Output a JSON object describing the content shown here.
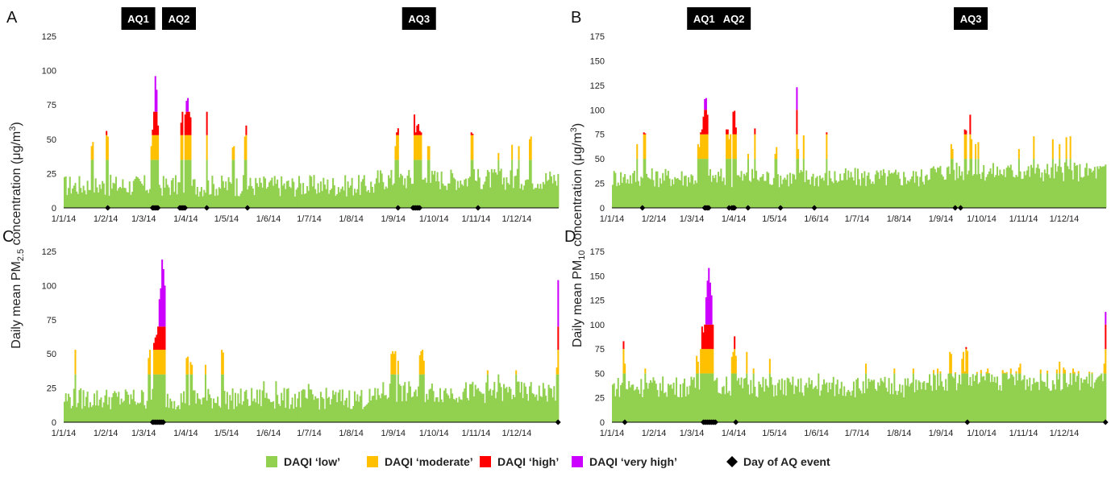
{
  "colors": {
    "low": "#92d050",
    "moderate": "#ffc000",
    "high": "#ff0000",
    "very_high": "#cc00ff",
    "event": "#000000"
  },
  "ylabels": {
    "left_prefix": "Daily mean PM",
    "left_sub": "2.5",
    "left_suffix": " concentration (μg/m",
    "left_sup": "3",
    "left_close": ")",
    "right_prefix": "Daily mean PM",
    "right_sub": "10",
    "right_suffix": " concentration (μg/m",
    "right_sup": "3",
    "right_close": ")"
  },
  "aq_labels": [
    "AQ1",
    "AQ2",
    "AQ3"
  ],
  "legend": {
    "low": "DAQI ‘low’",
    "moderate": "DAQI ‘moderate’",
    "high": "DAQI ‘high’",
    "very_high": "DAQI ‘very high’",
    "event": "Day of AQ event"
  },
  "chart_data": [
    {
      "panel": "A",
      "type": "bar",
      "pollutant": "PM2.5",
      "x_ticks": [
        "1/1/14",
        "1/2/14",
        "1/3/14",
        "1/4/14",
        "1/5/14",
        "1/6/14",
        "1/7/14",
        "1/8/14",
        "1/9/14",
        "1/10/14",
        "1/11/14",
        "1/12/14"
      ],
      "ylim": [
        0,
        125
      ],
      "yticks": [
        0,
        25,
        50,
        75,
        100,
        125
      ],
      "band_limits": [
        35,
        53,
        70
      ],
      "base": 13,
      "noise": 8,
      "peaks": [
        [
          31,
          56
        ],
        [
          32,
          52
        ],
        [
          64,
          45
        ],
        [
          65,
          57
        ],
        [
          66,
          70
        ],
        [
          67,
          96
        ],
        [
          68,
          86
        ],
        [
          69,
          60
        ],
        [
          86,
          62
        ],
        [
          87,
          70
        ],
        [
          89,
          68
        ],
        [
          90,
          78
        ],
        [
          91,
          80
        ],
        [
          92,
          70
        ],
        [
          93,
          66
        ],
        [
          105,
          70
        ],
        [
          124,
          44
        ],
        [
          125,
          45
        ],
        [
          134,
          60
        ],
        [
          133,
          52
        ],
        [
          244,
          45
        ],
        [
          245,
          55
        ],
        [
          246,
          58
        ],
        [
          258,
          68
        ],
        [
          259,
          55
        ],
        [
          260,
          60
        ],
        [
          261,
          61
        ],
        [
          262,
          56
        ],
        [
          263,
          55
        ],
        [
          268,
          45
        ],
        [
          269,
          45
        ],
        [
          300,
          55
        ],
        [
          301,
          54
        ],
        [
          320,
          40
        ],
        [
          330,
          46
        ],
        [
          335,
          45
        ],
        [
          343,
          50
        ],
        [
          344,
          52
        ],
        [
          20,
          45
        ],
        [
          21,
          48
        ]
      ],
      "events": [
        32,
        65,
        66,
        67,
        68,
        69,
        85,
        86,
        87,
        88,
        89,
        105,
        135,
        246,
        257,
        258,
        259,
        260,
        261,
        262,
        305
      ],
      "aq_label_days": [
        55,
        85,
        262
      ]
    },
    {
      "panel": "B",
      "type": "bar",
      "pollutant": "PM10",
      "x_ticks": [
        "1/1/14",
        "1/2/14",
        "1/3/14",
        "1/4/14",
        "1/5/14",
        "1/6/14",
        "1/7/14",
        "1/8/14",
        "1/9/14",
        "1/10/14",
        "1/11/14",
        "1/12/14"
      ],
      "ylim": [
        0,
        175
      ],
      "yticks": [
        0,
        25,
        50,
        75,
        100,
        125,
        150,
        175
      ],
      "band_limits": [
        50,
        75,
        100
      ],
      "base": 27,
      "noise": 10,
      "peaks": [
        [
          18,
          65
        ],
        [
          23,
          77
        ],
        [
          24,
          76
        ],
        [
          63,
          65
        ],
        [
          64,
          62
        ],
        [
          65,
          77
        ],
        [
          66,
          80
        ],
        [
          67,
          93
        ],
        [
          68,
          111
        ],
        [
          69,
          112
        ],
        [
          70,
          95
        ],
        [
          84,
          80
        ],
        [
          85,
          80
        ],
        [
          86,
          70
        ],
        [
          87,
          75
        ],
        [
          89,
          98
        ],
        [
          90,
          99
        ],
        [
          91,
          82
        ],
        [
          100,
          55
        ],
        [
          105,
          81
        ],
        [
          120,
          55
        ],
        [
          121,
          62
        ],
        [
          136,
          123
        ],
        [
          137,
          60
        ],
        [
          141,
          74
        ],
        [
          158,
          77
        ],
        [
          250,
          65
        ],
        [
          251,
          60
        ],
        [
          260,
          80
        ],
        [
          261,
          79
        ],
        [
          264,
          95
        ],
        [
          265,
          70
        ],
        [
          268,
          65
        ],
        [
          270,
          67
        ],
        [
          300,
          60
        ],
        [
          311,
          73
        ],
        [
          325,
          70
        ],
        [
          330,
          65
        ],
        [
          335,
          72
        ],
        [
          338,
          73
        ]
      ],
      "events": [
        22,
        68,
        69,
        70,
        71,
        86,
        88,
        89,
        90,
        100,
        124,
        149,
        253,
        257
      ],
      "aq_label_days": [
        68,
        90,
        265
      ]
    },
    {
      "panel": "C",
      "type": "bar",
      "pollutant": "PM2.5",
      "x_ticks": [
        "1/1/14",
        "1/2/14",
        "1/3/14",
        "1/4/14",
        "1/5/14",
        "1/6/14",
        "1/7/14",
        "1/8/14",
        "1/9/14",
        "1/10/14",
        "1/11/14",
        "1/12/14"
      ],
      "ylim": [
        0,
        125
      ],
      "yticks": [
        0,
        25,
        50,
        75,
        100,
        125
      ],
      "band_limits": [
        35,
        53,
        70
      ],
      "base": 14,
      "noise": 8,
      "peaks": [
        [
          8,
          53
        ],
        [
          62,
          47
        ],
        [
          63,
          53
        ],
        [
          66,
          58
        ],
        [
          67,
          62
        ],
        [
          68,
          64
        ],
        [
          69,
          70
        ],
        [
          70,
          90
        ],
        [
          71,
          98
        ],
        [
          72,
          119
        ],
        [
          73,
          112
        ],
        [
          74,
          100
        ],
        [
          90,
          47
        ],
        [
          91,
          48
        ],
        [
          93,
          44
        ],
        [
          94,
          42
        ],
        [
          104,
          42
        ],
        [
          116,
          53
        ],
        [
          117,
          51
        ],
        [
          147,
          30
        ],
        [
          156,
          30
        ],
        [
          180,
          28
        ],
        [
          241,
          50
        ],
        [
          242,
          52
        ],
        [
          243,
          50
        ],
        [
          244,
          52
        ],
        [
          246,
          45
        ],
        [
          262,
          49
        ],
        [
          263,
          52
        ],
        [
          264,
          53
        ],
        [
          265,
          45
        ],
        [
          312,
          38
        ],
        [
          320,
          35
        ],
        [
          333,
          38
        ],
        [
          364,
          104
        ],
        [
          363,
          40
        ]
      ],
      "events": [
        65,
        66,
        67,
        68,
        69,
        70,
        71,
        72,
        73,
        364
      ],
      "aq_label_days": []
    },
    {
      "panel": "D",
      "type": "bar",
      "pollutant": "PM10",
      "x_ticks": [
        "1/1/14",
        "1/2/14",
        "1/3/14",
        "1/4/14",
        "1/5/14",
        "1/6/14",
        "1/7/14",
        "1/8/14",
        "1/9/14",
        "1/10/14",
        "1/11/14",
        "1/12/14"
      ],
      "ylim": [
        0,
        175
      ],
      "yticks": [
        0,
        25,
        50,
        75,
        100,
        125,
        150,
        175
      ],
      "band_limits": [
        50,
        75,
        100
      ],
      "base": 32,
      "noise": 11,
      "peaks": [
        [
          8,
          83
        ],
        [
          9,
          60
        ],
        [
          24,
          55
        ],
        [
          62,
          68
        ],
        [
          63,
          62
        ],
        [
          65,
          75
        ],
        [
          66,
          98
        ],
        [
          67,
          92
        ],
        [
          68,
          100
        ],
        [
          69,
          128
        ],
        [
          70,
          145
        ],
        [
          71,
          158
        ],
        [
          72,
          143
        ],
        [
          73,
          130
        ],
        [
          74,
          100
        ],
        [
          88,
          67
        ],
        [
          89,
          72
        ],
        [
          90,
          88
        ],
        [
          91,
          68
        ],
        [
          99,
          72
        ],
        [
          104,
          55
        ],
        [
          116,
          65
        ],
        [
          152,
          50
        ],
        [
          187,
          60
        ],
        [
          208,
          55
        ],
        [
          222,
          55
        ],
        [
          240,
          55
        ],
        [
          249,
          72
        ],
        [
          250,
          70
        ],
        [
          258,
          65
        ],
        [
          259,
          72
        ],
        [
          261,
          77
        ],
        [
          262,
          73
        ],
        [
          277,
          55
        ],
        [
          294,
          55
        ],
        [
          300,
          56
        ],
        [
          301,
          60
        ],
        [
          330,
          62
        ],
        [
          333,
          56
        ],
        [
          340,
          55
        ],
        [
          364,
          113
        ],
        [
          363,
          60
        ]
      ],
      "events": [
        9,
        67,
        68,
        69,
        70,
        71,
        72,
        73,
        74,
        75,
        76,
        91,
        262,
        364
      ],
      "aq_label_days": []
    }
  ]
}
